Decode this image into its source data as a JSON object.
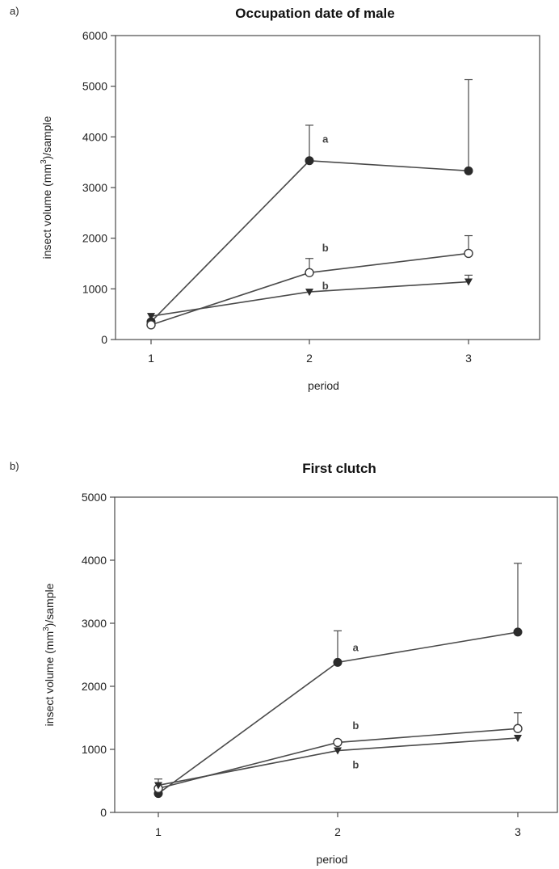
{
  "chart_data": [
    {
      "panel_tag": "a)",
      "type": "line",
      "title": "Occupation date of male",
      "xlabel": "period",
      "ylabel": {
        "pre": "insect volume (mm",
        "sup": "3",
        "post": ")/sample"
      },
      "x": [
        1,
        2,
        3
      ],
      "x_ticks": [
        "1",
        "2",
        "3"
      ],
      "ylim": [
        0,
        6000
      ],
      "y_ticks": [
        "0",
        "1000",
        "2000",
        "3000",
        "4000",
        "5000",
        "6000"
      ],
      "grid": false,
      "series": [
        {
          "marker": "filled-circle",
          "values": [
            350,
            3530,
            3330
          ],
          "error_upper": [
            null,
            4230,
            5130
          ]
        },
        {
          "marker": "open-circle",
          "values": [
            290,
            1320,
            1700
          ],
          "error_upper": [
            null,
            1600,
            2050
          ]
        },
        {
          "marker": "filled-triangle-down",
          "values": [
            460,
            940,
            1140
          ],
          "error_upper": [
            null,
            null,
            1270
          ]
        }
      ],
      "annotations": [
        {
          "text": "a",
          "x": 2.1,
          "y": 3950
        },
        {
          "text": "b",
          "x": 2.1,
          "y": 1800
        },
        {
          "text": "b",
          "x": 2.1,
          "y": 1050
        }
      ]
    },
    {
      "panel_tag": "b)",
      "type": "line",
      "title": "First clutch",
      "xlabel": "period",
      "ylabel": {
        "pre": "insect volume (mm",
        "sup": "3",
        "post": ")/sample"
      },
      "x": [
        1,
        2,
        3
      ],
      "x_ticks": [
        "1",
        "2",
        "3"
      ],
      "ylim": [
        0,
        5000
      ],
      "y_ticks": [
        "0",
        "1000",
        "2000",
        "3000",
        "4000",
        "5000"
      ],
      "grid": false,
      "series": [
        {
          "marker": "filled-circle",
          "values": [
            300,
            2380,
            2860
          ],
          "error_upper": [
            null,
            2880,
            3950
          ]
        },
        {
          "marker": "open-circle",
          "values": [
            380,
            1110,
            1330
          ],
          "error_upper": [
            530,
            null,
            1580
          ]
        },
        {
          "marker": "filled-triangle-down",
          "values": [
            430,
            980,
            1180
          ],
          "error_upper": [
            null,
            null,
            null
          ]
        }
      ],
      "annotations": [
        {
          "text": "a",
          "x": 2.1,
          "y": 2610
        },
        {
          "text": "b",
          "x": 2.1,
          "y": 1370
        },
        {
          "text": "b",
          "x": 2.1,
          "y": 750
        }
      ]
    }
  ]
}
